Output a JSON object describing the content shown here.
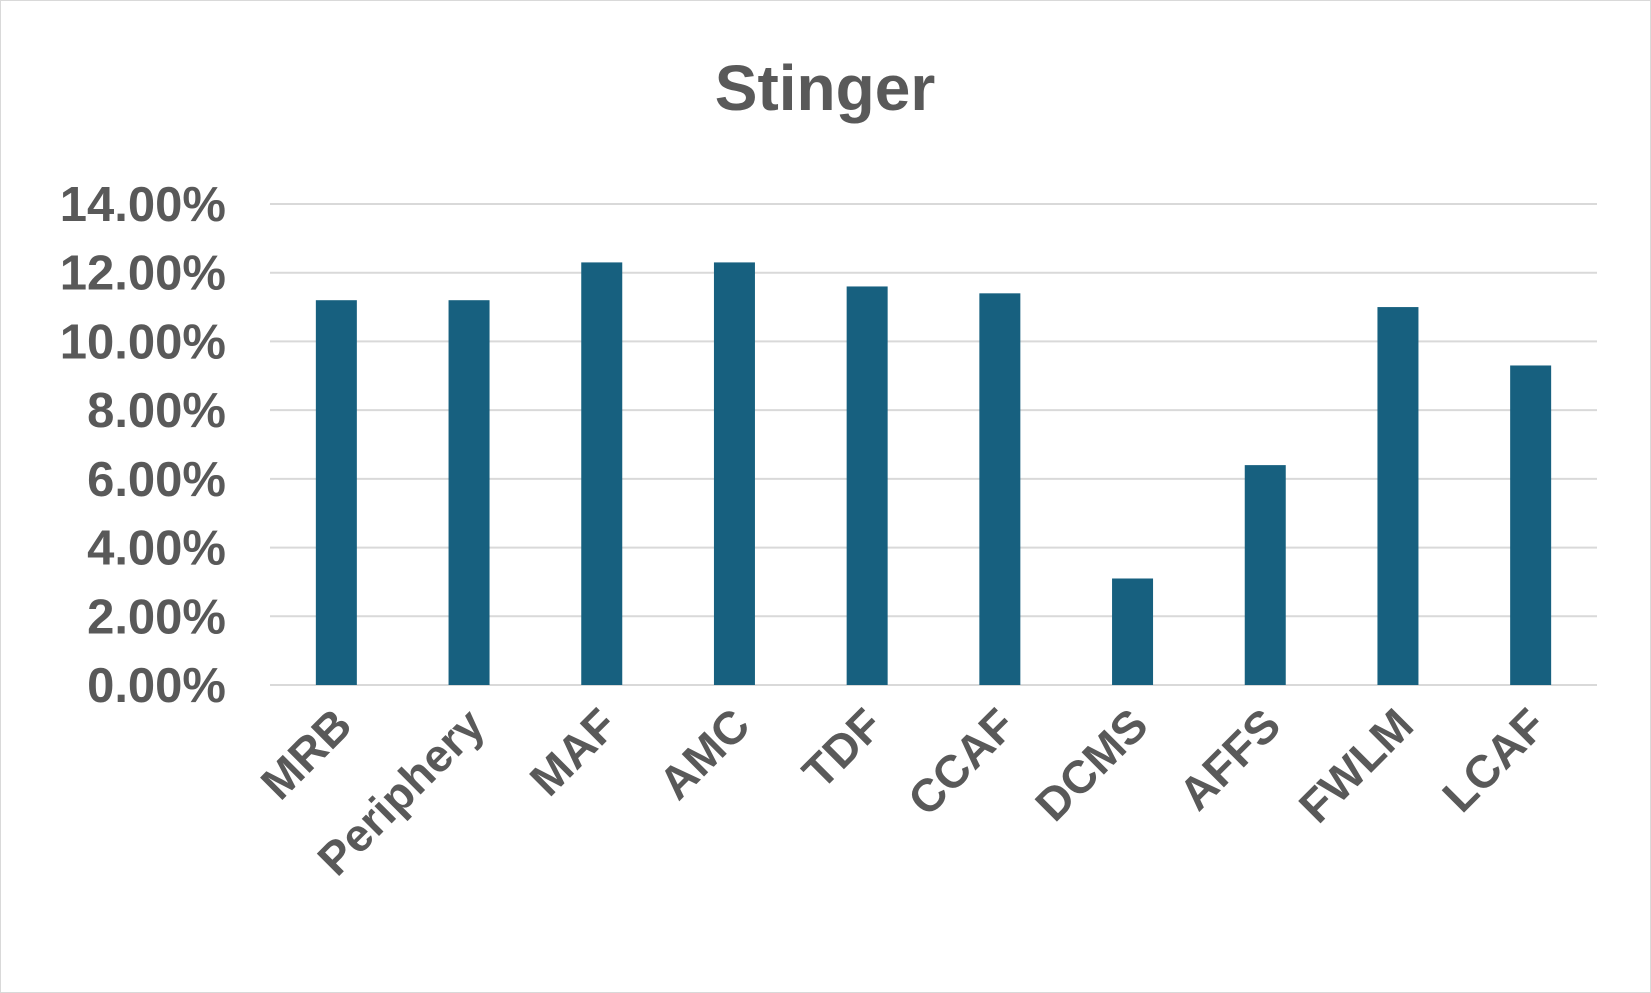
{
  "chart_data": {
    "type": "bar",
    "title": "Stinger",
    "xlabel": "",
    "ylabel": "",
    "categories": [
      "MRB",
      "Periphery",
      "MAF",
      "AMC",
      "TDF",
      "CCAF",
      "DCMS",
      "AFFS",
      "FWLM",
      "LCAF"
    ],
    "values": [
      11.2,
      11.2,
      12.3,
      12.3,
      11.6,
      11.4,
      3.1,
      6.4,
      11.0,
      9.3
    ],
    "value_format": "percent",
    "ylim": [
      0,
      14
    ],
    "yticks": [
      "0.00%",
      "2.00%",
      "4.00%",
      "6.00%",
      "8.00%",
      "10.00%",
      "12.00%",
      "14.00%"
    ],
    "ytick_values": [
      0,
      2,
      4,
      6,
      8,
      10,
      12,
      14
    ],
    "grid": true,
    "legend": "none",
    "colors": {
      "bar": "#17607f",
      "grid": "#d9d9d9",
      "text": "#595959",
      "border": "#d9d9d9"
    }
  }
}
